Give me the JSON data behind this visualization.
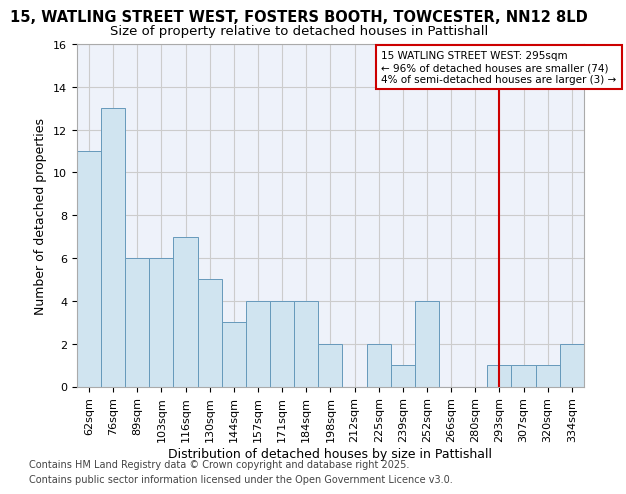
{
  "title1": "15, WATLING STREET WEST, FOSTERS BOOTH, TOWCESTER, NN12 8LD",
  "title2": "Size of property relative to detached houses in Pattishall",
  "xlabel": "Distribution of detached houses by size in Pattishall",
  "ylabel": "Number of detached properties",
  "categories": [
    "62sqm",
    "76sqm",
    "89sqm",
    "103sqm",
    "116sqm",
    "130sqm",
    "144sqm",
    "157sqm",
    "171sqm",
    "184sqm",
    "198sqm",
    "212sqm",
    "225sqm",
    "239sqm",
    "252sqm",
    "266sqm",
    "280sqm",
    "293sqm",
    "307sqm",
    "320sqm",
    "334sqm"
  ],
  "values": [
    11,
    13,
    6,
    6,
    7,
    5,
    3,
    4,
    4,
    4,
    2,
    0,
    2,
    1,
    4,
    0,
    0,
    1,
    1,
    1,
    2
  ],
  "bar_color": "#d0e4f0",
  "bar_edge_color": "#6699bb",
  "grid_color": "#cccccc",
  "bg_color": "#eef2fa",
  "red_line_index": 17,
  "annotation_line1": "15 WATLING STREET WEST: 295sqm",
  "annotation_line2": "← 96% of detached houses are smaller (74)",
  "annotation_line3": "4% of semi-detached houses are larger (3) →",
  "red_line_color": "#cc0000",
  "ylim": [
    0,
    16
  ],
  "yticks": [
    0,
    2,
    4,
    6,
    8,
    10,
    12,
    14,
    16
  ],
  "footer1": "Contains HM Land Registry data © Crown copyright and database right 2025.",
  "footer2": "Contains public sector information licensed under the Open Government Licence v3.0.",
  "title_fontsize": 10.5,
  "subtitle_fontsize": 9.5,
  "axis_label_fontsize": 9,
  "tick_fontsize": 8,
  "annot_fontsize": 7.5,
  "footer_fontsize": 7
}
